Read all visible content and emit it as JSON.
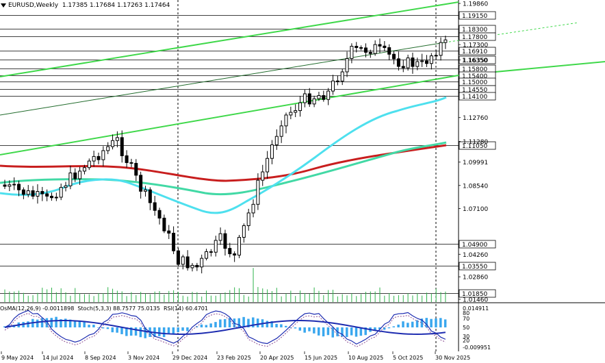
{
  "header": {
    "symbol": "EURUSD,Weekly",
    "open": "1.17385",
    "high": "1.17684",
    "low": "1.17263",
    "close": "1.17464"
  },
  "subwindow": {
    "osma": "OsMA(12,26,9) -0.0011898",
    "stoch": "Stoch(5,3,3) 88.7577 75.0135",
    "rsi": "RSI(14) 60.4701"
  },
  "price_axis": {
    "plain": [
      "1.19860",
      "1.17300",
      "1.16350",
      "1.12760",
      "1.11280",
      "1.09991",
      "1.08540",
      "1.07100",
      "1.04260",
      "1.02860",
      "1.01460"
    ],
    "boxed": [
      "1.19150",
      "1.18300",
      "1.17800",
      "1.16910",
      "1.16350",
      "1.15800",
      "1.15400",
      "1.15000",
      "1.14550",
      "1.14100",
      "1.11050",
      "1.04900",
      "1.03550",
      "1.01850"
    ]
  },
  "sub_axis": [
    "0.014911",
    "80",
    "70",
    "50",
    "30",
    "20",
    "-0.009951"
  ],
  "time_axis": [
    "9 May 2024",
    "14 Jul 2024",
    "8 Sep 2024",
    "3 Nov 2024",
    "29 Dec 2024",
    "23 Feb 2025",
    "20 Apr 2025",
    "15 Jun 2025",
    "10 Aug 2025",
    "5 Oct 2025",
    "30 Nov 2025"
  ],
  "colors": {
    "bull": "#000000",
    "bear": "#000000",
    "ma_fast": "#4ee0ee",
    "ma_mid": "#42d9a5",
    "ma_slow": "#c81e1e",
    "channel": "#3fd84a",
    "level_lines": "#000000",
    "osma": "#3aa7ee",
    "stoch": "#1c2bb0",
    "rsi": "#8a4a90"
  }
}
